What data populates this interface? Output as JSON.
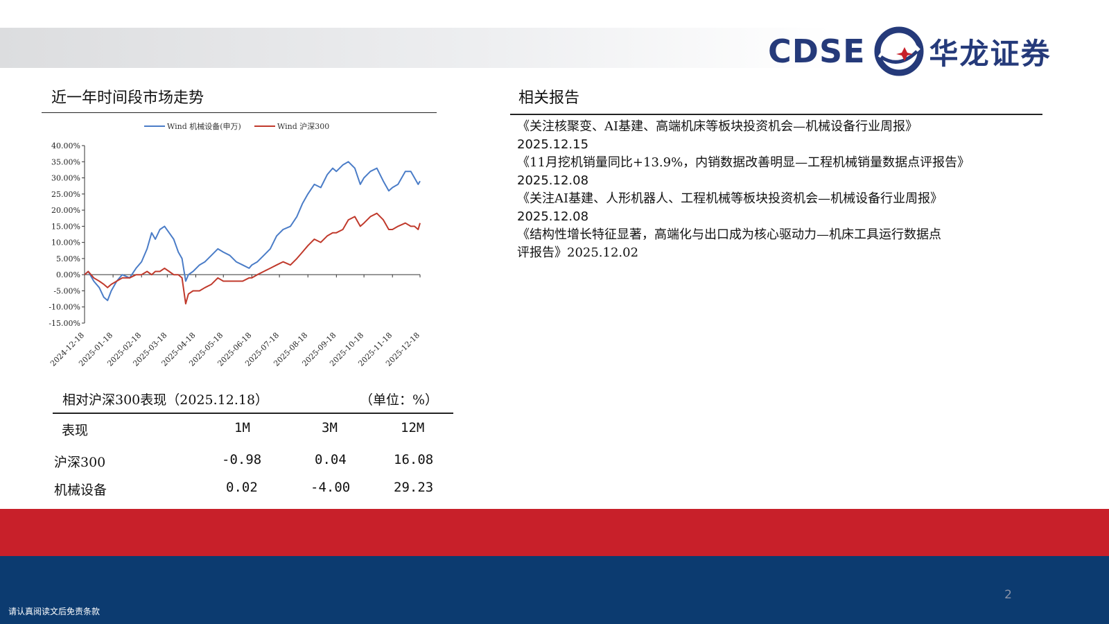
{
  "brand": {
    "latin": "CDSE",
    "chinese": "华龙证券",
    "colors": {
      "navy": "#253a7a",
      "red": "#c8202a",
      "footer_blue": "#0c3b70"
    }
  },
  "left_section": {
    "title": "近一年时间段市场走势"
  },
  "right_section": {
    "title": "相关报告",
    "reports": [
      {
        "title": "《关注核聚变、AI基建、高端机床等板块投资机会—机械设备行业周报》",
        "date": "2025.12.15"
      },
      {
        "title": "《11月挖机销量同比+13.9%，内销数据改善明显—工程机械销量数据点评报告》",
        "date": "2025.12.08"
      },
      {
        "title": "《关注AI基建、人形机器人、工程机械等板块投资机会—机械设备行业周报》",
        "date": "2025.12.08"
      },
      {
        "title": "《结构性增长特征显著，高端化与出口成为核心驱动力—机床工具运行数据点",
        "title_cont": "评报告》2025.12.02"
      }
    ]
  },
  "chart_data": {
    "type": "line",
    "legend_position": "top",
    "grid": false,
    "ylim": [
      -15,
      40
    ],
    "y_ticks": [
      "40.00%",
      "35.00%",
      "30.00%",
      "25.00%",
      "20.00%",
      "15.00%",
      "10.00%",
      "5.00%",
      "0.00%",
      "-5.00%",
      "-10.00%",
      "-15.00%"
    ],
    "x_ticks": [
      "2024-12-18",
      "2025-01-18",
      "2025-02-18",
      "2025-03-18",
      "2025-04-18",
      "2025-05-18",
      "2025-06-18",
      "2025-07-18",
      "2025-08-18",
      "2025-09-18",
      "2025-10-18",
      "2025-11-18",
      "2025-12-18"
    ],
    "x_range": [
      "2024-12-18",
      "2025-12-18"
    ],
    "series": [
      {
        "name": "Wind 机械设备(申万)",
        "color": "#4a7cc7",
        "points": [
          [
            "2024-12-18",
            0
          ],
          [
            "2024-12-22",
            1
          ],
          [
            "2024-12-28",
            -2
          ],
          [
            "2025-01-03",
            -4
          ],
          [
            "2025-01-08",
            -7
          ],
          [
            "2025-01-12",
            -8
          ],
          [
            "2025-01-16",
            -5
          ],
          [
            "2025-01-22",
            -2
          ],
          [
            "2025-01-28",
            0
          ],
          [
            "2025-02-05",
            -1
          ],
          [
            "2025-02-12",
            2
          ],
          [
            "2025-02-18",
            4
          ],
          [
            "2025-02-24",
            8
          ],
          [
            "2025-03-01",
            13
          ],
          [
            "2025-03-05",
            11
          ],
          [
            "2025-03-10",
            14
          ],
          [
            "2025-03-15",
            15
          ],
          [
            "2025-03-20",
            13
          ],
          [
            "2025-03-25",
            11
          ],
          [
            "2025-03-30",
            7
          ],
          [
            "2025-04-03",
            5
          ],
          [
            "2025-04-07",
            -2
          ],
          [
            "2025-04-10",
            0
          ],
          [
            "2025-04-15",
            1
          ],
          [
            "2025-04-22",
            3
          ],
          [
            "2025-04-28",
            4
          ],
          [
            "2025-05-05",
            6
          ],
          [
            "2025-05-12",
            8
          ],
          [
            "2025-05-18",
            7
          ],
          [
            "2025-05-25",
            6
          ],
          [
            "2025-06-01",
            4
          ],
          [
            "2025-06-08",
            3
          ],
          [
            "2025-06-15",
            2
          ],
          [
            "2025-06-18",
            3
          ],
          [
            "2025-06-24",
            4
          ],
          [
            "2025-07-01",
            6
          ],
          [
            "2025-07-08",
            8
          ],
          [
            "2025-07-15",
            12
          ],
          [
            "2025-07-22",
            14
          ],
          [
            "2025-07-30",
            15
          ],
          [
            "2025-08-06",
            18
          ],
          [
            "2025-08-12",
            22
          ],
          [
            "2025-08-18",
            25
          ],
          [
            "2025-08-25",
            28
          ],
          [
            "2025-09-01",
            27
          ],
          [
            "2025-09-08",
            31
          ],
          [
            "2025-09-14",
            33
          ],
          [
            "2025-09-18",
            32
          ],
          [
            "2025-09-25",
            34
          ],
          [
            "2025-10-01",
            35
          ],
          [
            "2025-10-08",
            33
          ],
          [
            "2025-10-14",
            28
          ],
          [
            "2025-10-18",
            30
          ],
          [
            "2025-10-25",
            32
          ],
          [
            "2025-11-01",
            33
          ],
          [
            "2025-11-08",
            29
          ],
          [
            "2025-11-14",
            26
          ],
          [
            "2025-11-18",
            27
          ],
          [
            "2025-11-24",
            28
          ],
          [
            "2025-12-02",
            32
          ],
          [
            "2025-12-08",
            32
          ],
          [
            "2025-12-12",
            30
          ],
          [
            "2025-12-16",
            28
          ],
          [
            "2025-12-18",
            29
          ]
        ]
      },
      {
        "name": "Wind 沪深300",
        "color": "#c0392b",
        "points": [
          [
            "2024-12-18",
            0
          ],
          [
            "2024-12-22",
            1
          ],
          [
            "2024-12-28",
            -1
          ],
          [
            "2025-01-03",
            -2
          ],
          [
            "2025-01-08",
            -3
          ],
          [
            "2025-01-12",
            -4
          ],
          [
            "2025-01-16",
            -3
          ],
          [
            "2025-01-22",
            -2
          ],
          [
            "2025-01-28",
            -1
          ],
          [
            "2025-02-05",
            -1
          ],
          [
            "2025-02-12",
            0
          ],
          [
            "2025-02-18",
            0
          ],
          [
            "2025-02-24",
            1
          ],
          [
            "2025-03-01",
            0
          ],
          [
            "2025-03-05",
            1
          ],
          [
            "2025-03-10",
            1
          ],
          [
            "2025-03-15",
            2
          ],
          [
            "2025-03-20",
            1
          ],
          [
            "2025-03-25",
            0
          ],
          [
            "2025-03-30",
            0
          ],
          [
            "2025-04-03",
            -1
          ],
          [
            "2025-04-07",
            -9
          ],
          [
            "2025-04-10",
            -6
          ],
          [
            "2025-04-15",
            -5
          ],
          [
            "2025-04-22",
            -5
          ],
          [
            "2025-04-28",
            -4
          ],
          [
            "2025-05-05",
            -3
          ],
          [
            "2025-05-12",
            -1
          ],
          [
            "2025-05-18",
            -2
          ],
          [
            "2025-05-25",
            -2
          ],
          [
            "2025-06-01",
            -2
          ],
          [
            "2025-06-08",
            -2
          ],
          [
            "2025-06-15",
            -1
          ],
          [
            "2025-06-18",
            -1
          ],
          [
            "2025-06-24",
            0
          ],
          [
            "2025-07-01",
            1
          ],
          [
            "2025-07-08",
            2
          ],
          [
            "2025-07-15",
            3
          ],
          [
            "2025-07-22",
            4
          ],
          [
            "2025-07-30",
            3
          ],
          [
            "2025-08-06",
            5
          ],
          [
            "2025-08-12",
            7
          ],
          [
            "2025-08-18",
            9
          ],
          [
            "2025-08-25",
            11
          ],
          [
            "2025-09-01",
            10
          ],
          [
            "2025-09-08",
            12
          ],
          [
            "2025-09-14",
            13
          ],
          [
            "2025-09-18",
            13
          ],
          [
            "2025-09-25",
            14
          ],
          [
            "2025-10-01",
            17
          ],
          [
            "2025-10-08",
            18
          ],
          [
            "2025-10-14",
            15
          ],
          [
            "2025-10-18",
            16
          ],
          [
            "2025-10-25",
            18
          ],
          [
            "2025-11-01",
            19
          ],
          [
            "2025-11-08",
            17
          ],
          [
            "2025-11-14",
            14
          ],
          [
            "2025-11-18",
            14
          ],
          [
            "2025-11-24",
            15
          ],
          [
            "2025-12-02",
            16
          ],
          [
            "2025-12-08",
            15
          ],
          [
            "2025-12-12",
            15
          ],
          [
            "2025-12-16",
            14
          ],
          [
            "2025-12-18",
            16
          ]
        ]
      }
    ]
  },
  "performance": {
    "title": "相对沪深300表现（2025.12.18）",
    "unit": "（单位：%）",
    "header_label": "表现",
    "columns": [
      "1M",
      "3M",
      "12M"
    ],
    "rows": [
      {
        "label": "沪深300",
        "values": [
          "-0.98",
          "0.04",
          "16.08"
        ]
      },
      {
        "label": "机械设备",
        "values": [
          "0.02",
          "-4.00",
          "29.23"
        ]
      }
    ]
  },
  "footer": {
    "page_number": "2",
    "disclaimer": "请认真阅读文后免责条款"
  }
}
